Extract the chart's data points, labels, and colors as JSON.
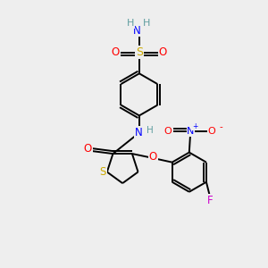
{
  "bg_color": "#eeeeee",
  "colors": {
    "C": "#000000",
    "H": "#5f9ea0",
    "N": "#0000ff",
    "O": "#ff0000",
    "S_thio": "#ccaa00",
    "S_sulfo": "#ccaa00",
    "F": "#cc00cc",
    "bond": "#000000"
  },
  "bond_lw": 1.4,
  "font_size": 8.5
}
